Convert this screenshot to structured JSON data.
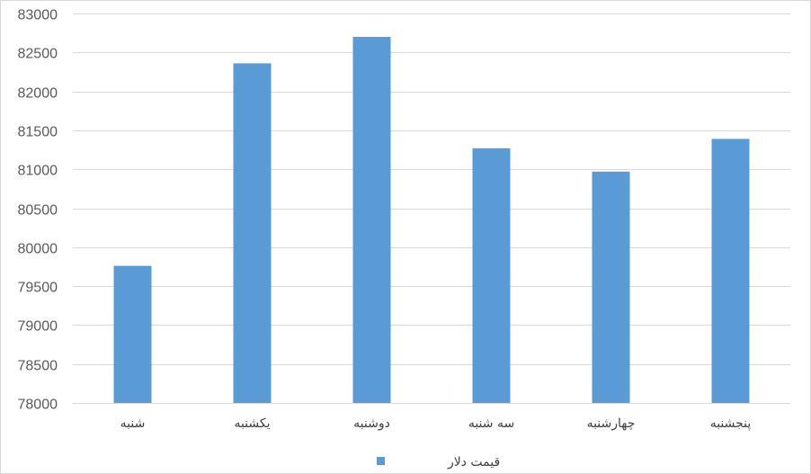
{
  "chart_data": {
    "type": "bar",
    "categories": [
      "شنبه",
      "یکشنبه",
      "دوشنبه",
      "سه شنبه",
      "چهارشنبه",
      "پنجشنبه"
    ],
    "series": [
      {
        "name": "قیمت دلار",
        "color": "#5b9bd5",
        "values": [
          79760,
          82360,
          82700,
          81270,
          80970,
          81390
        ]
      }
    ],
    "yticks": [
      "78000",
      "78500",
      "79000",
      "79500",
      "80000",
      "80500",
      "81000",
      "81500",
      "82000",
      "82500",
      "83000"
    ],
    "ylim": [
      78000,
      83000
    ],
    "grid": true,
    "legend": "bottom-center"
  }
}
